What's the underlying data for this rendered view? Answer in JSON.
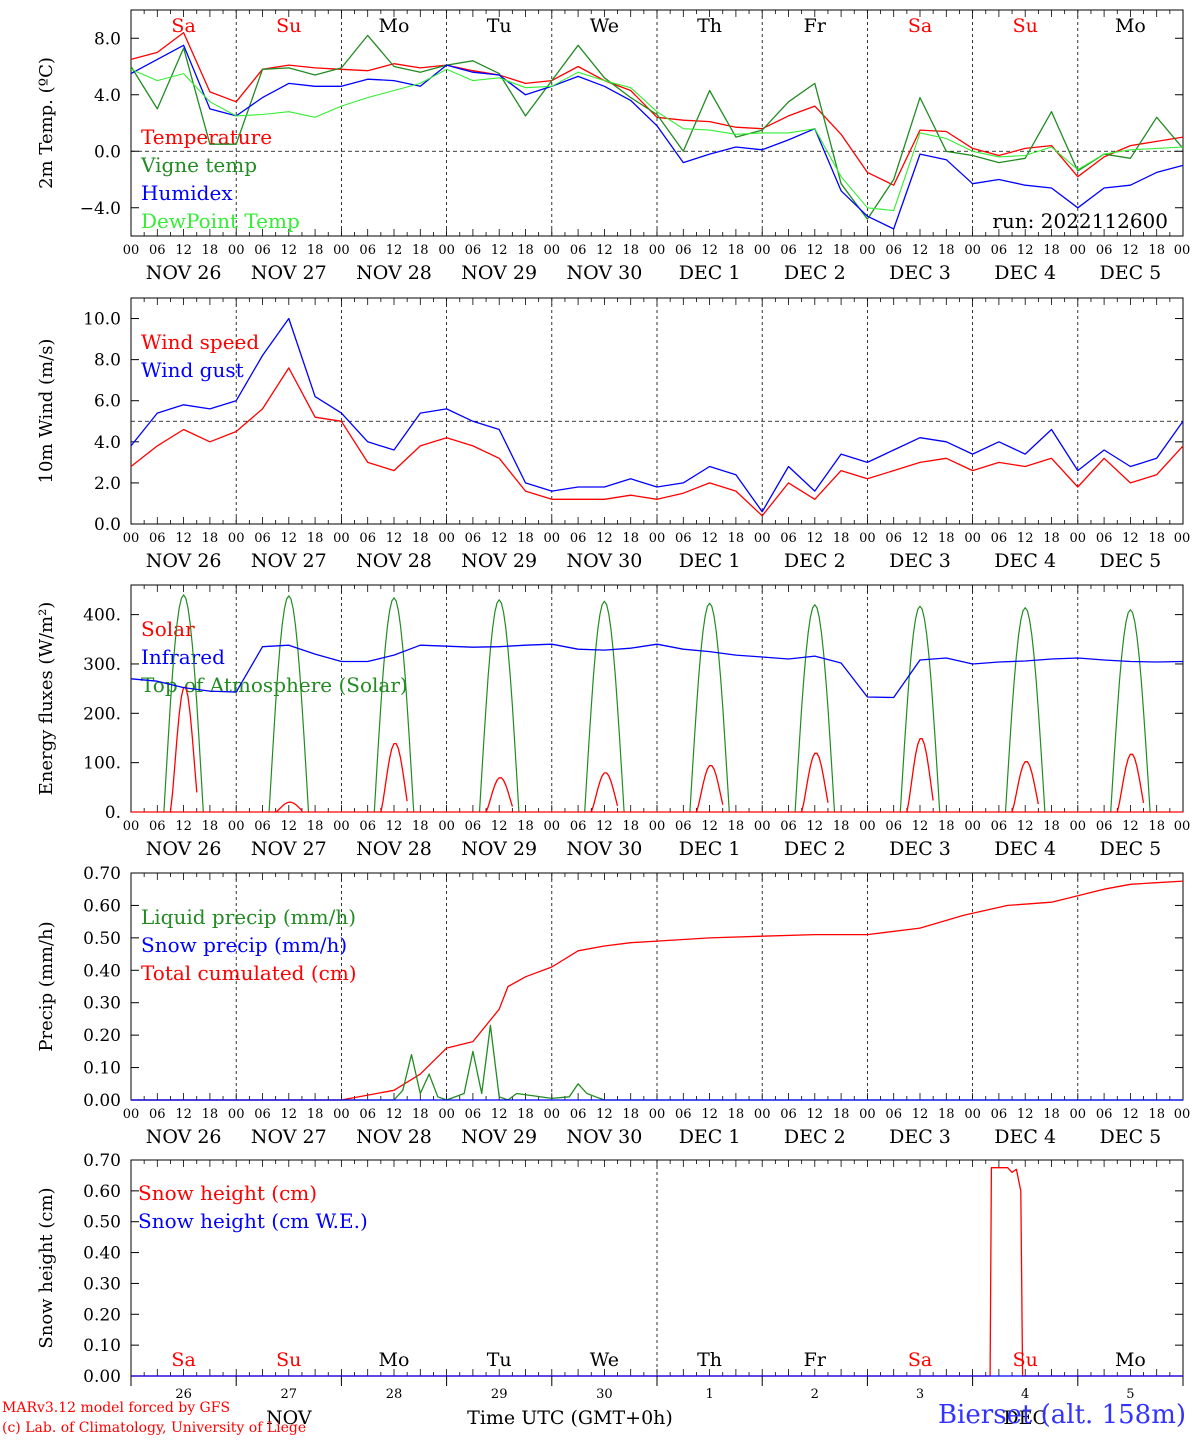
{
  "run_label": "run: 2022112600",
  "footer": {
    "credit_line1": "MARv3.12 model forced by GFS",
    "credit_line2": "(c) Lab. of Climatology, University of Liege",
    "xaxis_title": "Time UTC (GMT+0h)",
    "month_nov": "NOV",
    "month_dec": "DEC",
    "station": "Bierset (alt. 158m)"
  },
  "time_axis": {
    "hour_ticks": [
      "00",
      "06",
      "12",
      "18"
    ],
    "last_tick": "00",
    "date_labels": [
      "NOV 26",
      "NOV 27",
      "NOV 28",
      "NOV 29",
      "NOV 30",
      "DEC  1",
      "DEC  2",
      "DEC  3",
      "DEC  4",
      "DEC  5"
    ],
    "day_names": [
      "Sa",
      "Su",
      "Mo",
      "Tu",
      "We",
      "Th",
      "Fr",
      "Sa",
      "Su",
      "Mo"
    ],
    "weekend_days": [
      0,
      1,
      7,
      8
    ],
    "day_numbers": [
      "26",
      "27",
      "28",
      "29",
      "30",
      "1",
      "2",
      "3",
      "4",
      "5"
    ]
  },
  "colors": {
    "red": "#ff0000",
    "green": "#228b22",
    "blue": "#0000ff",
    "lightgreen": "#33ee33",
    "axis": "#000000"
  },
  "chart_data": [
    {
      "type": "line",
      "ylabel": "2m Temp. (ºC)",
      "ylim": [
        -6,
        10
      ],
      "yticks": [
        -4,
        0,
        4,
        8
      ],
      "ytick_labels": [
        "−4.0",
        "0.0",
        "4.0",
        "8.0"
      ],
      "ref_line": 0,
      "x_unit": "hours since NOV 26 00 UTC",
      "legend": [
        "Temperature",
        "Vigne temp",
        "Humidex",
        "DewPoint Temp"
      ],
      "series": [
        {
          "name": "Temperature",
          "color": "red",
          "x": [
            0,
            6,
            12,
            18,
            24,
            30,
            36,
            42,
            48,
            54,
            60,
            66,
            72,
            78,
            84,
            90,
            96,
            102,
            108,
            114,
            120,
            126,
            132,
            138,
            144,
            150,
            156,
            162,
            168,
            174,
            180,
            186,
            192,
            198,
            204,
            210,
            216,
            222,
            228,
            234,
            240
          ],
          "y": [
            6.5,
            7,
            8.4,
            4.2,
            3.5,
            5.8,
            6.1,
            5.9,
            5.8,
            5.7,
            6.2,
            5.9,
            6.1,
            5.7,
            5.4,
            4.8,
            5,
            6,
            5,
            4.3,
            2.4,
            2.2,
            2.1,
            1.7,
            1.6,
            2.5,
            3.2,
            1.2,
            -1.5,
            -2.4,
            1.5,
            1.4,
            0.2,
            -0.3,
            0.2,
            0.4,
            -1.8,
            -0.4,
            0.4,
            0.7,
            1
          ]
        },
        {
          "name": "Vigne temp",
          "color": "green",
          "x": [
            0,
            6,
            12,
            18,
            24,
            30,
            36,
            42,
            48,
            54,
            60,
            66,
            72,
            78,
            84,
            90,
            96,
            102,
            108,
            114,
            120,
            126,
            132,
            138,
            144,
            150,
            156,
            162,
            168,
            174,
            180,
            186,
            192,
            198,
            204,
            210,
            216,
            222,
            228,
            234,
            240
          ],
          "y": [
            6,
            3,
            7.3,
            0.5,
            0.5,
            5.8,
            5.9,
            5.4,
            5.9,
            8.2,
            6,
            5.6,
            6.1,
            6.4,
            5.5,
            2.5,
            5,
            7.5,
            5.2,
            3.8,
            2.6,
            0,
            4.3,
            1,
            1.5,
            3.5,
            4.8,
            -2.3,
            -4.8,
            -2,
            3.8,
            0,
            -0.3,
            -0.8,
            -0.5,
            2.8,
            -1.4,
            -0.2,
            -0.5,
            2.4,
            0.2
          ]
        },
        {
          "name": "Humidex",
          "color": "blue",
          "x": [
            0,
            6,
            12,
            18,
            24,
            30,
            36,
            42,
            48,
            54,
            60,
            66,
            72,
            78,
            84,
            90,
            96,
            102,
            108,
            114,
            120,
            126,
            132,
            138,
            144,
            150,
            156,
            162,
            168,
            174,
            180,
            186,
            192,
            198,
            204,
            210,
            216,
            222,
            228,
            234,
            240
          ],
          "y": [
            5.5,
            6.5,
            7.5,
            3,
            2.5,
            3.8,
            4.8,
            4.6,
            4.6,
            5.1,
            5,
            4.6,
            6.1,
            5.6,
            5.4,
            4,
            4.6,
            5.3,
            4.6,
            3.6,
            1.8,
            -0.8,
            -0.2,
            0.3,
            0.1,
            0.8,
            1.6,
            -2.8,
            -4.6,
            -5.5,
            -0.2,
            -0.6,
            -2.3,
            -2,
            -2.4,
            -2.6,
            -4,
            -2.6,
            -2.4,
            -1.5,
            -1
          ]
        },
        {
          "name": "DewPoint Temp",
          "color": "lightgreen",
          "x": [
            0,
            6,
            12,
            18,
            24,
            30,
            36,
            42,
            48,
            54,
            60,
            66,
            72,
            78,
            84,
            90,
            96,
            102,
            108,
            114,
            120,
            126,
            132,
            138,
            144,
            150,
            156,
            162,
            168,
            174,
            180,
            186,
            192,
            198,
            204,
            210,
            216,
            222,
            228,
            234,
            240
          ],
          "y": [
            5.8,
            5,
            5.5,
            3.5,
            2.5,
            2.6,
            2.8,
            2.4,
            3.2,
            3.8,
            4.3,
            4.8,
            5.8,
            5,
            5.2,
            4.5,
            4.6,
            5.6,
            5,
            4.5,
            2.8,
            1.6,
            1.5,
            1.2,
            1.3,
            1.3,
            1.6,
            -1.8,
            -4,
            -4.2,
            1.3,
            0.9,
            0,
            -0.4,
            -0.3,
            0.3,
            -1.3,
            -0.2,
            0.1,
            0.2,
            0.3
          ]
        }
      ]
    },
    {
      "type": "line",
      "ylabel": "10m Wind (m/s)",
      "ylim": [
        0,
        11
      ],
      "yticks": [
        0,
        2,
        4,
        6,
        8,
        10
      ],
      "ytick_labels": [
        "0.0",
        "2.0",
        "4.0",
        "6.0",
        "8.0",
        "10.0"
      ],
      "ref_line": 5,
      "legend": [
        "Wind speed",
        "Wind gust"
      ],
      "series": [
        {
          "name": "Wind speed",
          "color": "red",
          "x": [
            0,
            6,
            12,
            18,
            24,
            30,
            36,
            42,
            48,
            54,
            60,
            66,
            72,
            78,
            84,
            90,
            96,
            102,
            108,
            114,
            120,
            126,
            132,
            138,
            144,
            150,
            156,
            162,
            168,
            174,
            180,
            186,
            192,
            198,
            204,
            210,
            216,
            222,
            228,
            234,
            240
          ],
          "y": [
            2.8,
            3.8,
            4.6,
            4,
            4.5,
            5.6,
            7.6,
            5.2,
            5,
            3,
            2.6,
            3.8,
            4.2,
            3.8,
            3.2,
            1.6,
            1.2,
            1.2,
            1.2,
            1.4,
            1.2,
            1.5,
            2,
            1.6,
            0.4,
            2,
            1.2,
            2.6,
            2.2,
            2.6,
            3,
            3.2,
            2.6,
            3,
            2.8,
            3.2,
            1.8,
            3.2,
            2,
            2.4,
            3.8
          ]
        },
        {
          "name": "Wind gust",
          "color": "blue",
          "x": [
            0,
            6,
            12,
            18,
            24,
            30,
            36,
            42,
            48,
            54,
            60,
            66,
            72,
            78,
            84,
            90,
            96,
            102,
            108,
            114,
            120,
            126,
            132,
            138,
            144,
            150,
            156,
            162,
            168,
            174,
            180,
            186,
            192,
            198,
            204,
            210,
            216,
            222,
            228,
            234,
            240
          ],
          "y": [
            3.8,
            5.4,
            5.8,
            5.6,
            6,
            8.2,
            10,
            6.2,
            5.4,
            4,
            3.6,
            5.4,
            5.6,
            5,
            4.6,
            2,
            1.6,
            1.8,
            1.8,
            2.2,
            1.8,
            2,
            2.8,
            2.4,
            0.6,
            2.8,
            1.6,
            3.4,
            3,
            3.6,
            4.2,
            4,
            3.4,
            4,
            3.4,
            4.6,
            2.6,
            3.6,
            2.8,
            3.2,
            5
          ]
        }
      ]
    },
    {
      "type": "line",
      "ylabel": "Energy fluxes (W/m²)",
      "ylim": [
        0,
        460
      ],
      "yticks": [
        0,
        100,
        200,
        300,
        400
      ],
      "ytick_labels": [
        "0.",
        "100.",
        "200.",
        "300.",
        "400."
      ],
      "legend": [
        "Solar",
        "Infrared",
        "Top of Atmosphere (Solar)"
      ],
      "toa_peaks": [
        440,
        438,
        434,
        430,
        427,
        423,
        420,
        417,
        414,
        410
      ],
      "solar_peaks": [
        255,
        20,
        140,
        70,
        80,
        95,
        120,
        150,
        103,
        118
      ],
      "daylight_hours": [
        7.5,
        16.5
      ],
      "infrared": {
        "name": "Infrared",
        "color": "blue",
        "x": [
          0,
          6,
          12,
          18,
          24,
          30,
          36,
          42,
          48,
          54,
          60,
          66,
          72,
          78,
          84,
          90,
          96,
          102,
          108,
          114,
          120,
          126,
          132,
          138,
          144,
          150,
          156,
          162,
          168,
          174,
          180,
          186,
          192,
          198,
          204,
          210,
          216,
          222,
          228,
          234,
          240
        ],
        "y": [
          270,
          265,
          252,
          245,
          243,
          335,
          338,
          320,
          305,
          305,
          318,
          338,
          336,
          334,
          335,
          338,
          340,
          330,
          328,
          332,
          340,
          330,
          325,
          318,
          314,
          310,
          316,
          302,
          233,
          232,
          308,
          312,
          300,
          304,
          306,
          310,
          312,
          308,
          305,
          304,
          305
        ]
      }
    },
    {
      "type": "line",
      "ylabel": "Precip (mm/h)",
      "ylim": [
        0,
        0.7
      ],
      "yticks": [
        0,
        0.1,
        0.2,
        0.3,
        0.4,
        0.5,
        0.6,
        0.7
      ],
      "ytick_labels": [
        "0.00",
        "0.10",
        "0.20",
        "0.30",
        "0.40",
        "0.50",
        "0.60",
        "0.70"
      ],
      "legend": [
        "Liquid precip (mm/h)",
        "Snow precip (mm/h)",
        "Total cumulated (cm)"
      ],
      "series": [
        {
          "name": "Total cumulated (cm)",
          "color": "red",
          "x": [
            0,
            48,
            60,
            66,
            72,
            78,
            84,
            86,
            90,
            96,
            102,
            108,
            114,
            120,
            132,
            144,
            156,
            168,
            180,
            190,
            200,
            210,
            216,
            222,
            228,
            234,
            240
          ],
          "y": [
            0,
            0,
            0.03,
            0.08,
            0.16,
            0.18,
            0.28,
            0.35,
            0.38,
            0.41,
            0.46,
            0.475,
            0.485,
            0.49,
            0.5,
            0.505,
            0.51,
            0.51,
            0.53,
            0.57,
            0.6,
            0.61,
            0.63,
            0.65,
            0.665,
            0.67,
            0.675
          ]
        },
        {
          "name": "Liquid precip (mm/h)",
          "color": "green",
          "x": [
            0,
            60,
            62,
            64,
            66,
            68,
            70,
            72,
            76,
            78,
            80,
            82,
            84,
            86,
            88,
            96,
            100,
            102,
            104,
            106,
            108,
            240
          ],
          "y": [
            0,
            0,
            0.03,
            0.14,
            0.02,
            0.08,
            0.01,
            0,
            0.02,
            0.15,
            0.02,
            0.23,
            0.01,
            0,
            0.02,
            0.005,
            0.01,
            0.05,
            0.02,
            0.01,
            0,
            0
          ]
        },
        {
          "name": "Snow precip (mm/h)",
          "color": "blue",
          "x": [
            0,
            240
          ],
          "y": [
            0,
            0
          ]
        }
      ]
    },
    {
      "type": "line",
      "ylabel": "Snow height (cm)",
      "ylim": [
        0,
        0.7
      ],
      "yticks": [
        0,
        0.1,
        0.2,
        0.3,
        0.4,
        0.5,
        0.6,
        0.7
      ],
      "ytick_labels": [
        "0.00",
        "0.10",
        "0.20",
        "0.30",
        "0.40",
        "0.50",
        "0.60",
        "0.70"
      ],
      "legend": [
        "Snow height (cm)",
        "Snow height (cm W.E.)"
      ],
      "series": [
        {
          "name": "Snow height (cm)",
          "color": "red",
          "x": [
            0,
            196,
            196.3,
            200,
            201,
            202,
            203,
            203.4,
            240
          ],
          "y": [
            0,
            0,
            0.675,
            0.675,
            0.66,
            0.67,
            0.6,
            0,
            0
          ]
        },
        {
          "name": "Snow height (cm W.E.)",
          "color": "blue",
          "x": [
            0,
            240
          ],
          "y": [
            0,
            0
          ]
        }
      ]
    }
  ]
}
